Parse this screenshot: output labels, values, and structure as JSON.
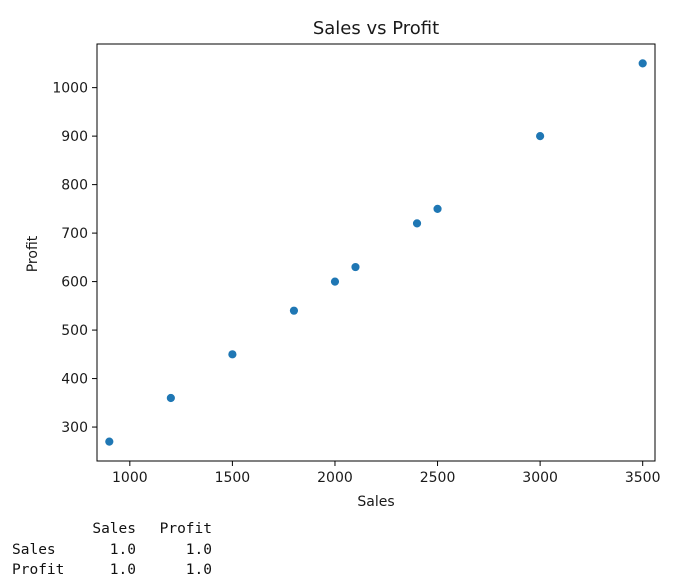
{
  "chart_data": {
    "type": "scatter",
    "title": "Sales vs Profit",
    "xlabel": "Sales",
    "ylabel": "Profit",
    "xlim": [
      840,
      3560
    ],
    "ylim": [
      230,
      1090
    ],
    "xticks": [
      1000,
      1500,
      2000,
      2500,
      3000,
      3500
    ],
    "yticks": [
      300,
      400,
      500,
      600,
      700,
      800,
      900,
      1000
    ],
    "grid": false,
    "marker_color": "#1f77b4",
    "series": [
      {
        "x": [
          900,
          1200,
          1500,
          1800,
          2000,
          2100,
          2400,
          2500,
          3000,
          3500
        ],
        "y": [
          270,
          360,
          450,
          540,
          600,
          630,
          720,
          750,
          900,
          1050
        ]
      }
    ]
  },
  "correlation_table": {
    "columns": [
      "Sales",
      "Profit"
    ],
    "rows": [
      {
        "label": "Sales",
        "values": [
          "1.0",
          "1.0"
        ]
      },
      {
        "label": "Profit",
        "values": [
          "1.0",
          "1.0"
        ]
      }
    ]
  }
}
